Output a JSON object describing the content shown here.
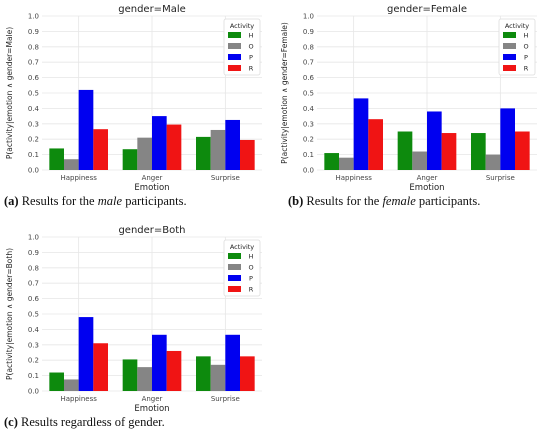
{
  "figure": {
    "captions": [
      {
        "label": "(a)",
        "text_before": "Results for the ",
        "emph": "male",
        "text_after": " participants."
      },
      {
        "label": "(b)",
        "text_before": "Results for the ",
        "emph": "female",
        "text_after": " participants."
      },
      {
        "label": "(c)",
        "text_before": "Results regardless of gender.",
        "emph": "",
        "text_after": ""
      }
    ]
  },
  "colors": {
    "H": "#0d8a0d",
    "O": "#858585",
    "P": "#0000f0",
    "R": "#f01414"
  },
  "chart_data": [
    {
      "type": "bar",
      "title": "gender=Male",
      "xlabel": "Emotion",
      "ylabel": "P(activity|emotion ∧ gender=Male)",
      "ylim": [
        0,
        1.0
      ],
      "yticks": [
        "0.0",
        "0.1",
        "0.2",
        "0.3",
        "0.4",
        "0.5",
        "0.6",
        "0.7",
        "0.8",
        "0.9",
        "1.0"
      ],
      "grid": true,
      "legend_title": "Activity",
      "legend_position": "top-right",
      "categories": [
        "Happiness",
        "Anger",
        "Surprise"
      ],
      "series": [
        {
          "name": "H",
          "values": [
            0.14,
            0.135,
            0.215
          ]
        },
        {
          "name": "O",
          "values": [
            0.07,
            0.21,
            0.26
          ]
        },
        {
          "name": "P",
          "values": [
            0.52,
            0.35,
            0.325
          ]
        },
        {
          "name": "R",
          "values": [
            0.265,
            0.295,
            0.195
          ]
        }
      ]
    },
    {
      "type": "bar",
      "title": "gender=Female",
      "xlabel": "Emotion",
      "ylabel": "P(activity|emotion ∧ gender=Female)",
      "ylim": [
        0,
        1.0
      ],
      "yticks": [
        "0.0",
        "0.1",
        "0.2",
        "0.3",
        "0.4",
        "0.5",
        "0.6",
        "0.7",
        "0.8",
        "0.9",
        "1.0"
      ],
      "grid": true,
      "legend_title": "Activity",
      "legend_position": "top-right",
      "categories": [
        "Happiness",
        "Anger",
        "Surprise"
      ],
      "series": [
        {
          "name": "H",
          "values": [
            0.11,
            0.25,
            0.24
          ]
        },
        {
          "name": "O",
          "values": [
            0.08,
            0.12,
            0.1
          ]
        },
        {
          "name": "P",
          "values": [
            0.465,
            0.38,
            0.4
          ]
        },
        {
          "name": "R",
          "values": [
            0.33,
            0.24,
            0.25
          ]
        }
      ]
    },
    {
      "type": "bar",
      "title": "gender=Both",
      "xlabel": "Emotion",
      "ylabel": "P(activity|emotion ∧ gender=Both)",
      "ylim": [
        0,
        1.0
      ],
      "yticks": [
        "0.0",
        "0.1",
        "0.2",
        "0.3",
        "0.4",
        "0.5",
        "0.6",
        "0.7",
        "0.8",
        "0.9",
        "1.0"
      ],
      "grid": true,
      "legend_title": "Activity",
      "legend_position": "top-right",
      "categories": [
        "Happiness",
        "Anger",
        "Surprise"
      ],
      "series": [
        {
          "name": "H",
          "values": [
            0.12,
            0.205,
            0.225
          ]
        },
        {
          "name": "O",
          "values": [
            0.075,
            0.155,
            0.17
          ]
        },
        {
          "name": "P",
          "values": [
            0.48,
            0.365,
            0.365
          ]
        },
        {
          "name": "R",
          "values": [
            0.31,
            0.26,
            0.225
          ]
        }
      ]
    }
  ]
}
